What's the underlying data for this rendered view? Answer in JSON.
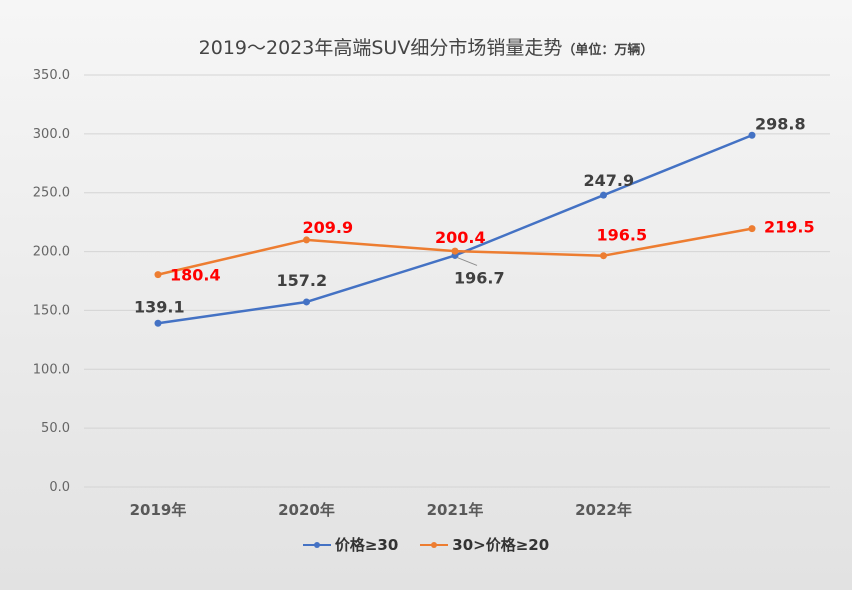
{
  "chart": {
    "title_main": "2019～2023年高端SUV细分市场销量走势",
    "title_unit": "（单位：万辆）"
  },
  "chart_data": {
    "type": "line",
    "title": "2019～2023年高端SUV细分市场销量走势（单位：万辆）",
    "categories": [
      "2019年",
      "2020年",
      "2021年",
      "2022年",
      ""
    ],
    "ylim": [
      0,
      350
    ],
    "yticks": [
      "0.0",
      "50.0",
      "100.0",
      "150.0",
      "200.0",
      "250.0",
      "300.0",
      "350.0"
    ],
    "grid": true,
    "legend_position": "bottom",
    "series": [
      {
        "name": "价格≥30",
        "color": "#4472C4",
        "label_color": "#404040",
        "values": [
          139.1,
          157.2,
          196.7,
          247.9,
          298.8
        ],
        "labels": [
          "139.1",
          "157.2",
          "196.7",
          "247.9",
          "298.8"
        ]
      },
      {
        "name": "30>价格≥20",
        "color": "#ED7D31",
        "label_color": "#FF0000",
        "values": [
          180.4,
          209.9,
          200.4,
          196.5,
          219.5
        ],
        "labels": [
          "180.4",
          "209.9",
          "200.4",
          "196.5",
          "219.5"
        ]
      }
    ]
  }
}
